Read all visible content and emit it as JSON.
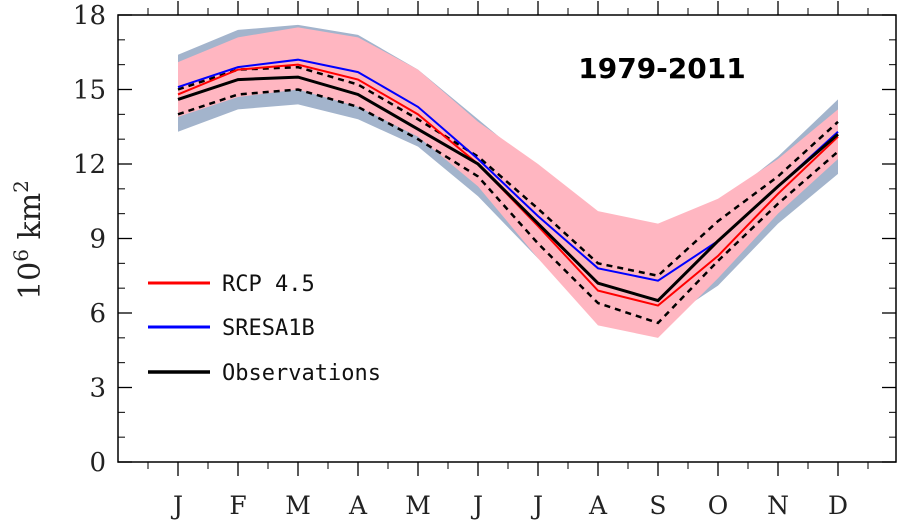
{
  "chart_data": {
    "type": "line",
    "title": "1979-2011",
    "ylabel_base": "10",
    "ylabel_exp1": "6",
    "ylabel_unit": "km",
    "ylabel_exp2": "2",
    "xlabel": "",
    "categories": [
      "J",
      "F",
      "M",
      "A",
      "M",
      "J",
      "J",
      "A",
      "S",
      "O",
      "N",
      "D"
    ],
    "ylim": [
      0,
      18
    ],
    "yticks": [
      "0",
      "3",
      "6",
      "9",
      "12",
      "15",
      "18"
    ],
    "ytick_values": [
      0,
      3,
      6,
      9,
      12,
      15,
      18
    ],
    "series": [
      {
        "name": "RCP 4.5",
        "color": "#ff0000",
        "values": [
          14.8,
          15.8,
          16.0,
          15.4,
          14.0,
          12.0,
          9.5,
          6.9,
          6.3,
          8.3,
          10.8,
          13.1
        ]
      },
      {
        "name": "SRESA1B",
        "color": "#0000ff",
        "values": [
          15.1,
          15.9,
          16.2,
          15.7,
          14.3,
          12.2,
          9.9,
          7.8,
          7.3,
          8.9,
          11.1,
          13.3
        ]
      },
      {
        "name": "Observations",
        "color": "#000000",
        "values": [
          14.6,
          15.4,
          15.5,
          14.8,
          13.4,
          12.0,
          9.6,
          7.2,
          6.5,
          8.9,
          11.1,
          13.2
        ]
      }
    ],
    "observations_upper": [
      15.0,
      15.8,
      15.9,
      15.2,
      13.8,
      12.3,
      10.2,
      8.0,
      7.5,
      9.7,
      11.5,
      13.7
    ],
    "observations_lower": [
      14.0,
      14.8,
      15.0,
      14.3,
      13.0,
      11.5,
      8.8,
      6.4,
      5.6,
      8.1,
      10.4,
      12.5
    ],
    "band_sresa1b": {
      "name": "SRESA1B range",
      "color": "#a3b4cc",
      "upper": [
        16.4,
        17.4,
        17.6,
        17.2,
        15.8,
        13.8,
        11.8,
        9.5,
        8.6,
        10.4,
        12.3,
        14.6
      ],
      "lower": [
        13.3,
        14.2,
        14.4,
        13.8,
        12.7,
        10.7,
        8.2,
        6.2,
        5.5,
        7.1,
        9.6,
        11.6
      ]
    },
    "band_rcp45": {
      "name": "RCP 4.5 range",
      "color": "#ffb6c1",
      "upper": [
        16.1,
        17.1,
        17.5,
        17.1,
        15.8,
        13.7,
        12.0,
        10.1,
        9.6,
        10.6,
        12.2,
        14.2
      ],
      "lower": [
        13.9,
        14.7,
        15.0,
        14.3,
        13.1,
        11.1,
        8.2,
        5.5,
        5.0,
        7.4,
        10.0,
        12.2
      ]
    },
    "legend": [
      "RCP 4.5",
      "SRESA1B",
      "Observations"
    ],
    "legend_position": "lower-left"
  }
}
